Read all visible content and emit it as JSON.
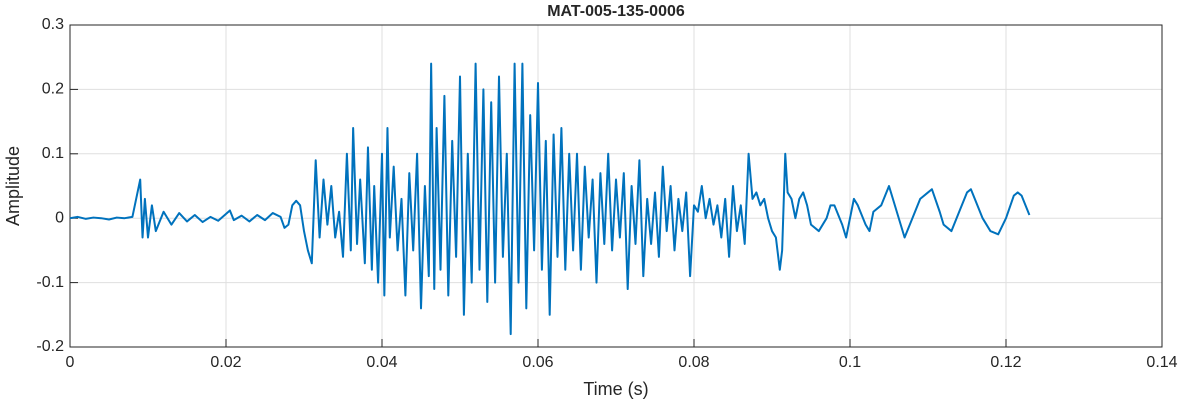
{
  "chart_data": {
    "type": "line",
    "title": "MAT-005-135-0006",
    "x_label": "Time (s)",
    "y_label": "Amplitude",
    "color": "#0072bd",
    "grid": true,
    "xlim": [
      0,
      0.14
    ],
    "ylim": [
      -0.2,
      0.3
    ],
    "xticks": [
      0,
      0.02,
      0.04,
      0.06,
      0.08,
      0.1,
      0.12,
      0.14
    ],
    "yticks": [
      -0.2,
      -0.1,
      0,
      0.1,
      0.2,
      0.3
    ],
    "x": [
      0,
      0.001,
      0.002,
      0.003,
      0.004,
      0.005,
      0.006,
      0.007,
      0.008,
      0.009,
      0.0093,
      0.0096,
      0.01,
      0.0105,
      0.011,
      0.012,
      0.013,
      0.014,
      0.015,
      0.016,
      0.017,
      0.018,
      0.019,
      0.0205,
      0.021,
      0.022,
      0.023,
      0.024,
      0.025,
      0.026,
      0.027,
      0.0275,
      0.028,
      0.0285,
      0.029,
      0.0295,
      0.03,
      0.0305,
      0.031,
      0.0315,
      0.032,
      0.0325,
      0.033,
      0.0335,
      0.034,
      0.0345,
      0.035,
      0.0355,
      0.036,
      0.0363,
      0.0368,
      0.0372,
      0.0378,
      0.0382,
      0.0387,
      0.039,
      0.0395,
      0.04,
      0.0403,
      0.0407,
      0.041,
      0.0415,
      0.042,
      0.0425,
      0.043,
      0.0435,
      0.044,
      0.0445,
      0.045,
      0.0455,
      0.046,
      0.0463,
      0.0467,
      0.047,
      0.0475,
      0.048,
      0.0485,
      0.049,
      0.0495,
      0.05,
      0.0505,
      0.051,
      0.0515,
      0.052,
      0.0525,
      0.053,
      0.0535,
      0.054,
      0.0545,
      0.055,
      0.0555,
      0.056,
      0.0565,
      0.057,
      0.0575,
      0.058,
      0.0585,
      0.059,
      0.0595,
      0.06,
      0.0605,
      0.061,
      0.0615,
      0.062,
      0.0625,
      0.063,
      0.0635,
      0.064,
      0.0645,
      0.065,
      0.0655,
      0.066,
      0.0665,
      0.067,
      0.0675,
      0.068,
      0.0685,
      0.069,
      0.0695,
      0.07,
      0.0705,
      0.071,
      0.0715,
      0.072,
      0.0725,
      0.073,
      0.0735,
      0.074,
      0.0745,
      0.075,
      0.0755,
      0.076,
      0.0765,
      0.077,
      0.0775,
      0.078,
      0.0785,
      0.079,
      0.0795,
      0.08,
      0.0805,
      0.081,
      0.0815,
      0.082,
      0.0825,
      0.083,
      0.0835,
      0.084,
      0.0845,
      0.085,
      0.0855,
      0.086,
      0.0865,
      0.087,
      0.0875,
      0.088,
      0.0885,
      0.089,
      0.0895,
      0.09,
      0.0905,
      0.091,
      0.0913,
      0.0917,
      0.092,
      0.0925,
      0.093,
      0.0935,
      0.094,
      0.0945,
      0.095,
      0.096,
      0.097,
      0.0975,
      0.098,
      0.099,
      0.0995,
      0.1,
      0.1005,
      0.101,
      0.102,
      0.1025,
      0.103,
      0.104,
      0.105,
      0.1055,
      0.1065,
      0.107,
      0.108,
      0.109,
      0.11,
      0.1105,
      0.1115,
      0.112,
      0.113,
      0.114,
      0.115,
      0.1155,
      0.116,
      0.117,
      0.118,
      0.119,
      0.12,
      0.121,
      0.1215,
      0.122,
      0.123
    ],
    "values": [
      0,
      0.002,
      -0.001,
      0.001,
      0,
      -0.002,
      0.001,
      0,
      0.002,
      0.06,
      -0.03,
      0.03,
      -0.03,
      0.02,
      -0.02,
      0.01,
      -0.01,
      0.008,
      -0.005,
      0.005,
      -0.006,
      0.002,
      -0.004,
      0.012,
      -0.003,
      0.004,
      -0.005,
      0.005,
      -0.003,
      0.008,
      0.002,
      -0.015,
      -0.01,
      0.02,
      0.027,
      0.02,
      -0.02,
      -0.05,
      -0.07,
      0.09,
      -0.03,
      0.06,
      -0.01,
      0.05,
      -0.03,
      0.01,
      -0.06,
      0.1,
      -0.05,
      0.14,
      -0.04,
      0.06,
      -0.07,
      0.11,
      -0.08,
      0.05,
      -0.1,
      0.1,
      -0.12,
      0.14,
      -0.03,
      0.08,
      -0.05,
      0.03,
      -0.12,
      0.07,
      -0.05,
      0.1,
      -0.14,
      0.05,
      -0.09,
      0.24,
      -0.11,
      0.14,
      -0.08,
      0.19,
      -0.12,
      0.12,
      -0.06,
      0.22,
      -0.15,
      0.1,
      -0.1,
      0.24,
      -0.08,
      0.2,
      -0.13,
      0.18,
      -0.1,
      0.22,
      -0.06,
      0.1,
      -0.18,
      0.24,
      -0.1,
      0.24,
      -0.14,
      0.16,
      -0.05,
      0.21,
      -0.08,
      0.12,
      -0.15,
      0.13,
      -0.06,
      0.14,
      -0.08,
      0.1,
      -0.05,
      0.1,
      -0.08,
      0.08,
      -0.03,
      0.06,
      -0.1,
      0.07,
      -0.04,
      0.1,
      -0.05,
      0.06,
      -0.03,
      0.07,
      -0.11,
      0.05,
      -0.04,
      0.09,
      -0.09,
      0.03,
      -0.04,
      0.04,
      -0.06,
      0.08,
      -0.02,
      0.05,
      -0.05,
      0.03,
      -0.02,
      0.04,
      -0.09,
      0.02,
      0.01,
      0.05,
      0,
      0.03,
      -0.01,
      0.02,
      -0.03,
      0.03,
      -0.06,
      0.05,
      -0.02,
      0.02,
      -0.04,
      0.1,
      0.03,
      0.04,
      0.02,
      0.03,
      0,
      -0.02,
      -0.03,
      -0.08,
      -0.05,
      0.1,
      0.04,
      0.03,
      0,
      0.03,
      0.04,
      0.02,
      -0.01,
      -0.02,
      0,
      0.02,
      0.02,
      -0.01,
      -0.03,
      0,
      0.03,
      0.02,
      -0.01,
      -0.02,
      0.01,
      0.02,
      0.05,
      0.03,
      -0.01,
      -0.03,
      0,
      0.03,
      0.04,
      0.045,
      0.01,
      -0.01,
      -0.02,
      0.01,
      0.04,
      0.045,
      0.03,
      0,
      -0.02,
      -0.025,
      0,
      0.035,
      0.04,
      0.035,
      0.005
    ]
  }
}
